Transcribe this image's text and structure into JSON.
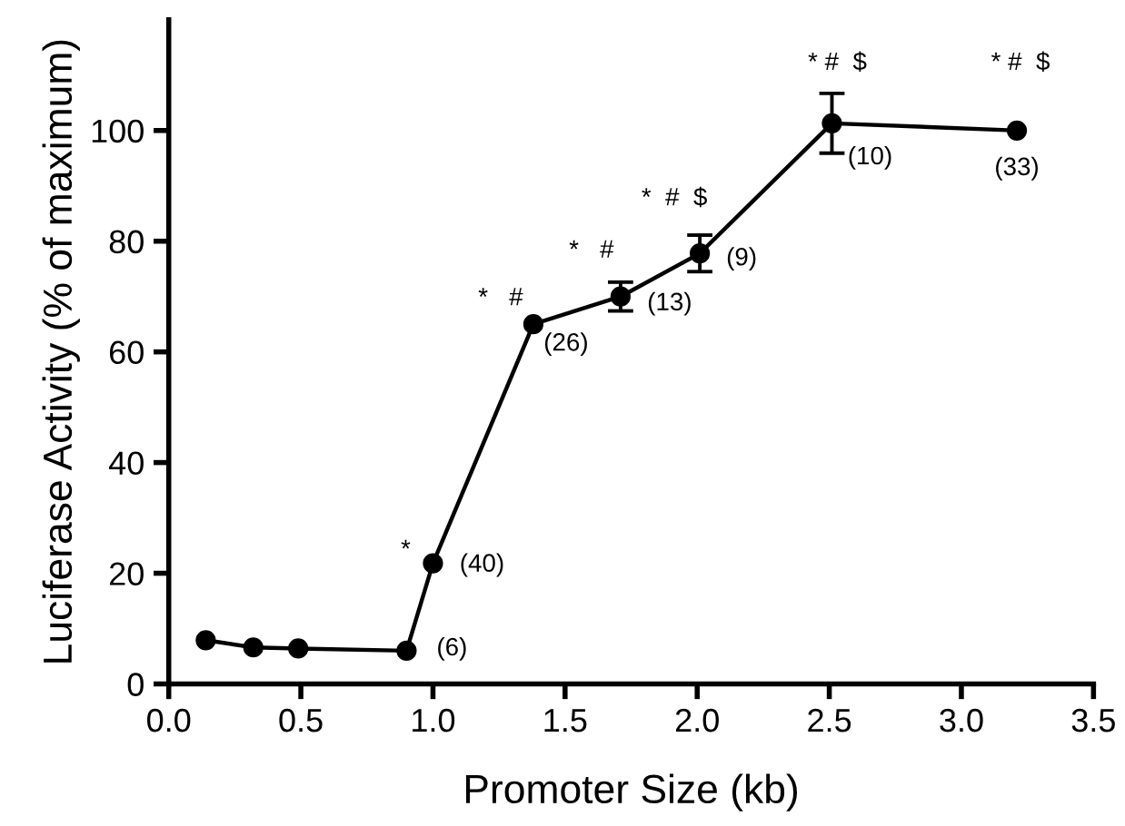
{
  "chart_data": {
    "type": "line",
    "xlabel": "Promoter Size (kb)",
    "ylabel": "Luciferase Activity (% of maximum)",
    "x": [
      0.14,
      0.32,
      0.49,
      0.9,
      1.0,
      1.38,
      1.71,
      2.01,
      2.51,
      3.21
    ],
    "values": [
      7.9,
      6.6,
      6.4,
      6.0,
      21.8,
      65,
      70,
      77.8,
      101.3,
      100
    ],
    "errors": [
      null,
      null,
      null,
      null,
      null,
      null,
      2.6,
      3.3,
      5.4,
      null
    ],
    "color": "#000000",
    "marker": "circle",
    "line_style": "solid",
    "grid": false,
    "xlim": [
      0,
      3.5
    ],
    "xticks": [
      {
        "value": 0,
        "label": "0.0"
      },
      {
        "value": 0.5,
        "label": "0.5"
      },
      {
        "value": 1,
        "label": "1.0"
      },
      {
        "value": 1.5,
        "label": "1.5"
      },
      {
        "value": 2,
        "label": "2.0"
      },
      {
        "value": 2.5,
        "label": "2.5"
      },
      {
        "value": 3,
        "label": "3.0"
      },
      {
        "value": 3.5,
        "label": "3.5"
      }
    ],
    "ylim": [
      0,
      120
    ],
    "yticks": [
      0,
      20,
      40,
      60,
      80,
      100
    ],
    "annotations": [
      {
        "text": "(6)",
        "x": 0.9,
        "y": 6.0
      },
      {
        "text": "(40)",
        "x": 1.0,
        "y": 21.8
      },
      {
        "text": "(26)",
        "x": 1.38,
        "y": 65
      },
      {
        "text": "(13)",
        "x": 1.71,
        "y": 70
      },
      {
        "text": "(9)",
        "x": 2.01,
        "y": 77.8
      },
      {
        "text": "(10)",
        "x": 2.51,
        "y": 101.3
      },
      {
        "text": "(33)",
        "x": 3.21,
        "y": 100
      },
      {
        "text": "*",
        "x": 1.0,
        "y": 21.8
      },
      {
        "text": "*   #",
        "x": 1.38,
        "y": 65
      },
      {
        "text": "*   #",
        "x": 1.71,
        "y": 70
      },
      {
        "text": "*  #  $",
        "x": 2.01,
        "y": 77.8
      },
      {
        "text": "* #  $",
        "x": 2.51,
        "y": 101.3
      },
      {
        "text": "* #  $",
        "x": 3.21,
        "y": 100
      }
    ]
  }
}
